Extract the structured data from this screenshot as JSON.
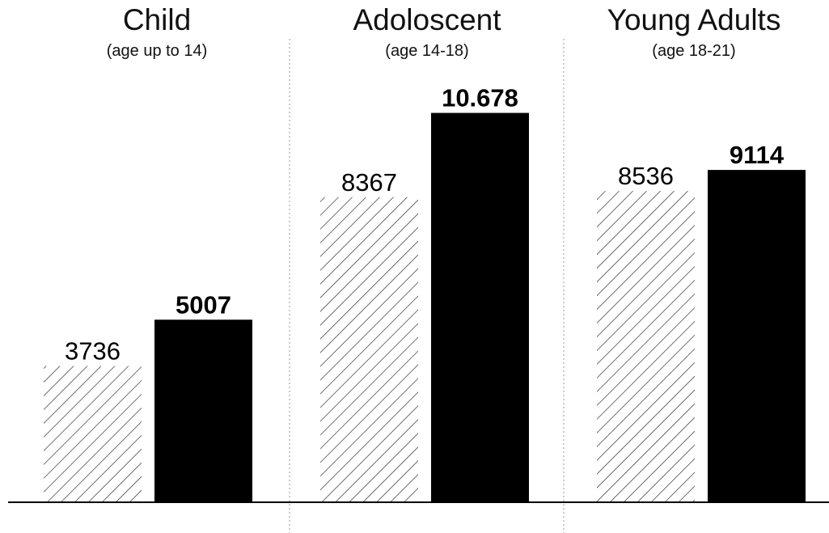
{
  "chart_data": {
    "type": "bar",
    "categories": [
      {
        "title": "Child",
        "subtitle": "(age up to 14)"
      },
      {
        "title": "Adoloscent",
        "subtitle": "(age 14-18)"
      },
      {
        "title": "Young Adults",
        "subtitle": "(age 18-21)"
      }
    ],
    "series": [
      {
        "values": [
          3736,
          8367,
          8536
        ],
        "value_labels": [
          "3736",
          "8367",
          "8536"
        ],
        "fill": "hatched",
        "label_weight": "normal"
      },
      {
        "values": [
          5007,
          10678,
          9114
        ],
        "value_labels": [
          "5007",
          "10.678",
          "9114"
        ],
        "fill": "#000000",
        "label_weight": "bold"
      }
    ],
    "ylim": [
      0,
      12000
    ],
    "grid": false,
    "separators": "dotted vertical lines between groups"
  }
}
